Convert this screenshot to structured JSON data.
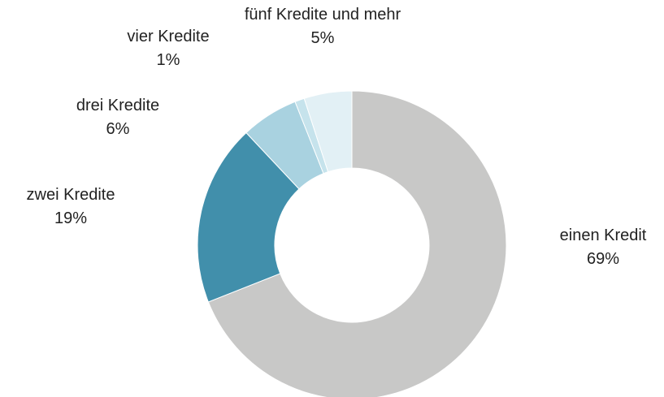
{
  "chart_data": {
    "type": "donut",
    "categories": [
      "einen Kredit",
      "zwei Kredite",
      "drei Kredite",
      "vier Kredite",
      "fünf Kredite und mehr"
    ],
    "values": [
      69,
      19,
      6,
      1,
      5
    ],
    "value_labels": [
      "69%",
      "19%",
      "6%",
      "1%",
      "5%"
    ],
    "colors": [
      "#c8c8c7",
      "#418fab",
      "#a9d2e0",
      "#c6e3ec",
      "#e2f0f5"
    ]
  }
}
